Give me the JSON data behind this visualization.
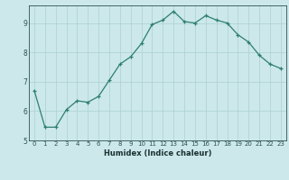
{
  "xlabel": "Humidex (Indice chaleur)",
  "x": [
    0,
    1,
    2,
    3,
    4,
    5,
    6,
    7,
    8,
    9,
    10,
    11,
    12,
    13,
    14,
    15,
    16,
    17,
    18,
    19,
    20,
    21,
    22,
    23
  ],
  "y": [
    6.7,
    5.45,
    5.45,
    6.05,
    6.35,
    6.3,
    6.5,
    7.05,
    7.6,
    7.85,
    8.3,
    8.95,
    9.1,
    9.4,
    9.05,
    9.0,
    9.25,
    9.1,
    9.0,
    8.6,
    8.35,
    7.9,
    7.6,
    7.45
  ],
  "xlim": [
    -0.5,
    23.5
  ],
  "ylim": [
    5,
    9.6
  ],
  "yticks": [
    5,
    6,
    7,
    8,
    9
  ],
  "xticks": [
    0,
    1,
    2,
    3,
    4,
    5,
    6,
    7,
    8,
    9,
    10,
    11,
    12,
    13,
    14,
    15,
    16,
    17,
    18,
    19,
    20,
    21,
    22,
    23
  ],
  "line_color": "#2d7f6e",
  "marker": "+",
  "markersize": 3.5,
  "linewidth": 0.9,
  "bg_color": "#cce8ea",
  "grid_color": "#aad0d4",
  "tick_label_color": "#2d5050",
  "xlabel_color": "#1a3030",
  "tick_fontsize": 5.0,
  "xlabel_fontsize": 6.0
}
